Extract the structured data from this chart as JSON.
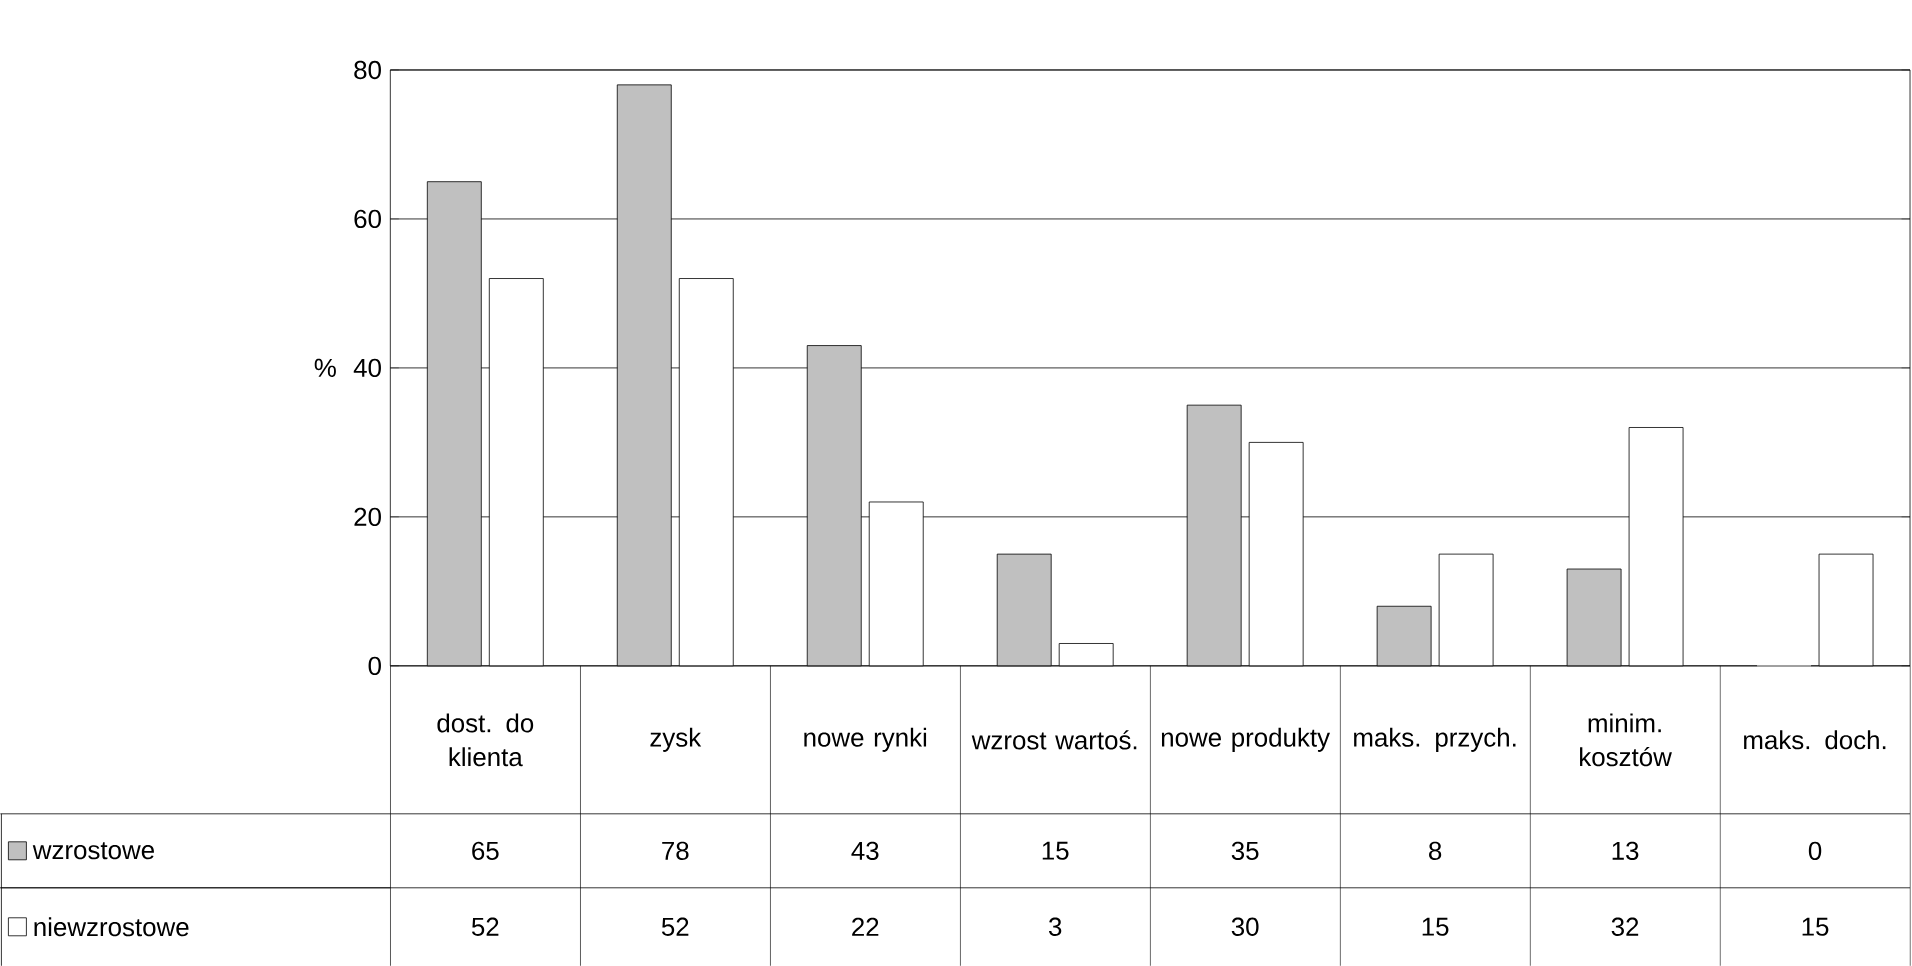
{
  "chart_data": {
    "type": "bar",
    "ylabel": "%",
    "categories": [
      "dost. do klienta",
      "zysk",
      "nowe rynki",
      "wzrost wartoś.",
      "nowe produkty",
      "maks. przych.",
      "minim. kosztów",
      "maks. doch."
    ],
    "series": [
      {
        "name": "wzrostowe",
        "color": "#c0c0c0",
        "values": [
          65,
          78,
          43,
          15,
          35,
          8,
          13,
          0
        ]
      },
      {
        "name": "niewzrostowe",
        "color": "#ffffff",
        "values": [
          52,
          52,
          22,
          3,
          30,
          15,
          32,
          15
        ]
      }
    ],
    "ylim": [
      0,
      80
    ],
    "yticks": [
      0,
      20,
      40,
      60,
      80
    ],
    "grid": "y",
    "data_labels": true,
    "legend": "bottom left"
  }
}
